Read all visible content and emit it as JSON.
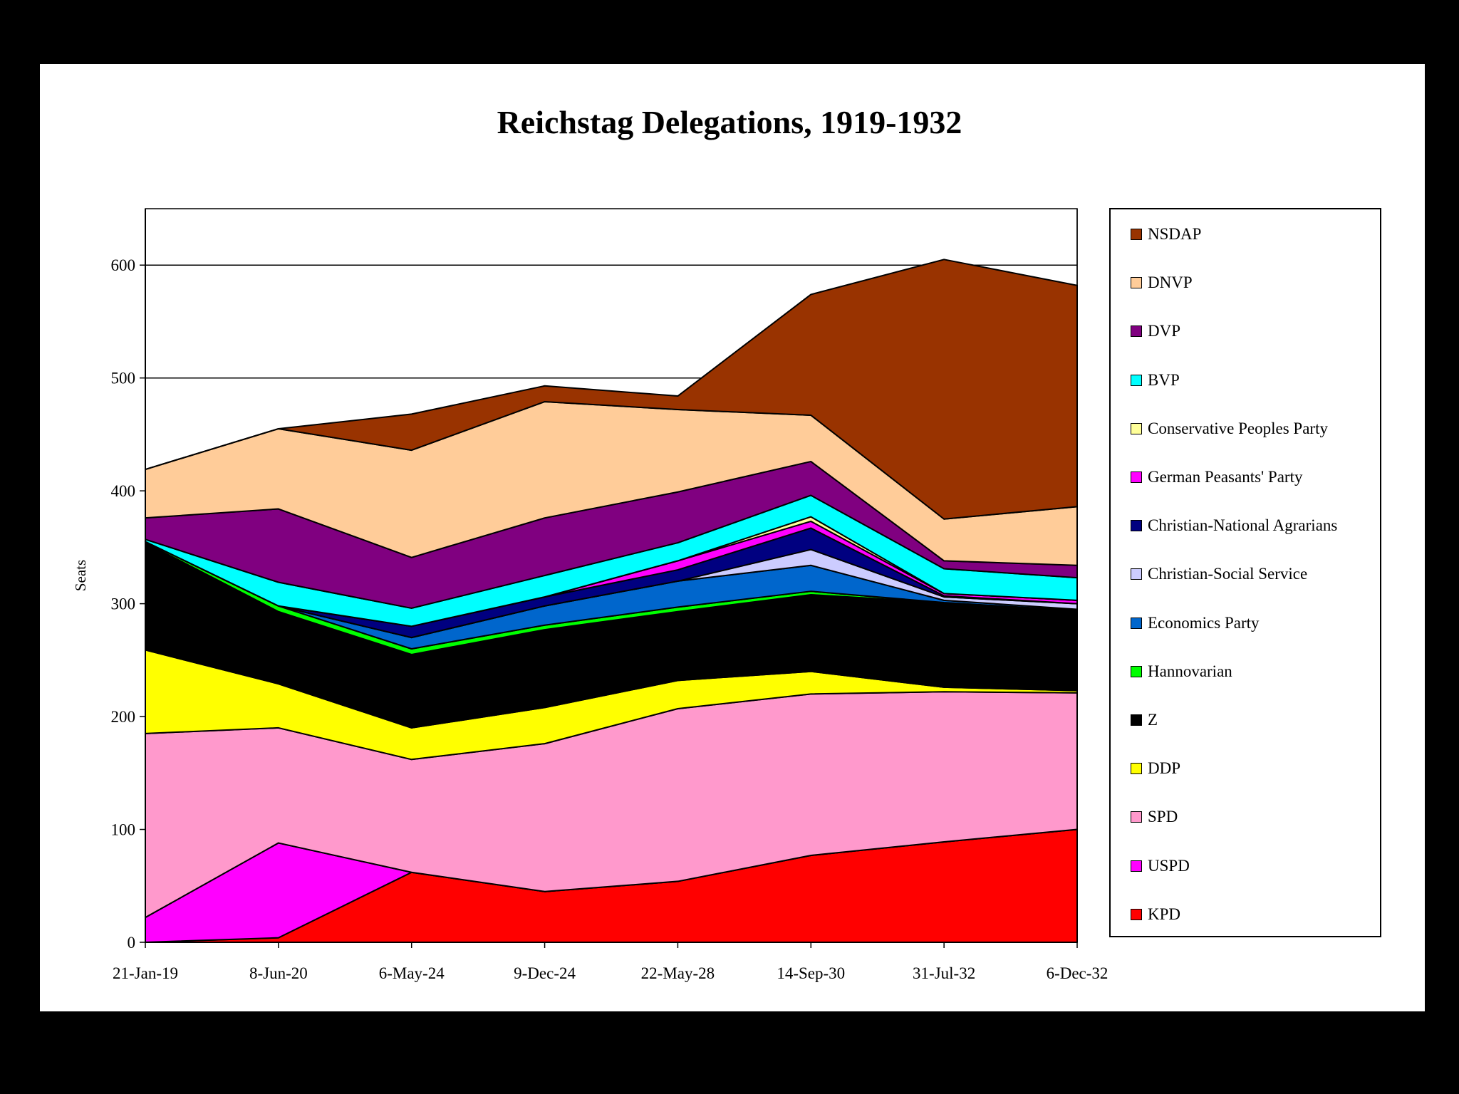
{
  "chart_data": {
    "type": "area",
    "stacked": true,
    "title": "Reichstag Delegations, 1919-1932",
    "xlabel": "",
    "ylabel": "Seats",
    "ylim": [
      0,
      650
    ],
    "yticks": [
      0,
      100,
      200,
      300,
      400,
      500,
      600
    ],
    "grid": "horizontal",
    "legend_position": "right",
    "categories": [
      "21-Jan-19",
      "8-Jun-20",
      "6-May-24",
      "9-Dec-24",
      "22-May-28",
      "14-Sep-30",
      "31-Jul-32",
      "6-Dec-32"
    ],
    "series": [
      {
        "name": "KPD",
        "color": "#ff0000",
        "values": [
          0,
          4,
          62,
          45,
          54,
          77,
          89,
          100
        ]
      },
      {
        "name": "USPD",
        "color": "#ff00ff",
        "values": [
          22,
          84,
          0,
          0,
          0,
          0,
          0,
          0
        ]
      },
      {
        "name": "SPD",
        "color": "#ff99cc",
        "values": [
          163,
          102,
          100,
          131,
          153,
          143,
          133,
          121
        ]
      },
      {
        "name": "DDP",
        "color": "#ffff00",
        "values": [
          74,
          39,
          28,
          32,
          25,
          20,
          4,
          2
        ]
      },
      {
        "name": "Z",
        "color": "#000000",
        "values": [
          95,
          64,
          65,
          69,
          61,
          68,
          75,
          70
        ]
      },
      {
        "name": "Hannovarian",
        "color": "#00ff00",
        "values": [
          1,
          5,
          5,
          4,
          4,
          3,
          0,
          1
        ]
      },
      {
        "name": "Economics Party",
        "color": "#0066cc",
        "values": [
          0,
          0,
          10,
          17,
          23,
          23,
          2,
          1
        ]
      },
      {
        "name": "Christian-Social Service",
        "color": "#ccccff",
        "values": [
          0,
          0,
          0,
          0,
          0,
          14,
          3,
          5
        ]
      },
      {
        "name": "Christian-National Agrarians",
        "color": "#000080",
        "values": [
          0,
          0,
          10,
          8,
          10,
          19,
          1,
          0
        ]
      },
      {
        "name": "German Peasants' Party",
        "color": "#ff00ff",
        "values": [
          0,
          0,
          0,
          0,
          8,
          6,
          2,
          3
        ]
      },
      {
        "name": "Conservative Peoples Party",
        "color": "#ffff99",
        "values": [
          0,
          0,
          0,
          0,
          0,
          4,
          0,
          0
        ]
      },
      {
        "name": "BVP",
        "color": "#00ffff",
        "values": [
          2,
          21,
          16,
          19,
          16,
          19,
          22,
          20
        ]
      },
      {
        "name": "DVP",
        "color": "#800080",
        "values": [
          19,
          65,
          45,
          51,
          45,
          30,
          7,
          11
        ]
      },
      {
        "name": "DNVP",
        "color": "#ffcc99",
        "values": [
          43,
          71,
          95,
          103,
          73,
          41,
          37,
          52
        ]
      },
      {
        "name": "NSDAP",
        "color": "#993300",
        "values": [
          0,
          0,
          32,
          14,
          12,
          107,
          230,
          196
        ]
      }
    ]
  }
}
